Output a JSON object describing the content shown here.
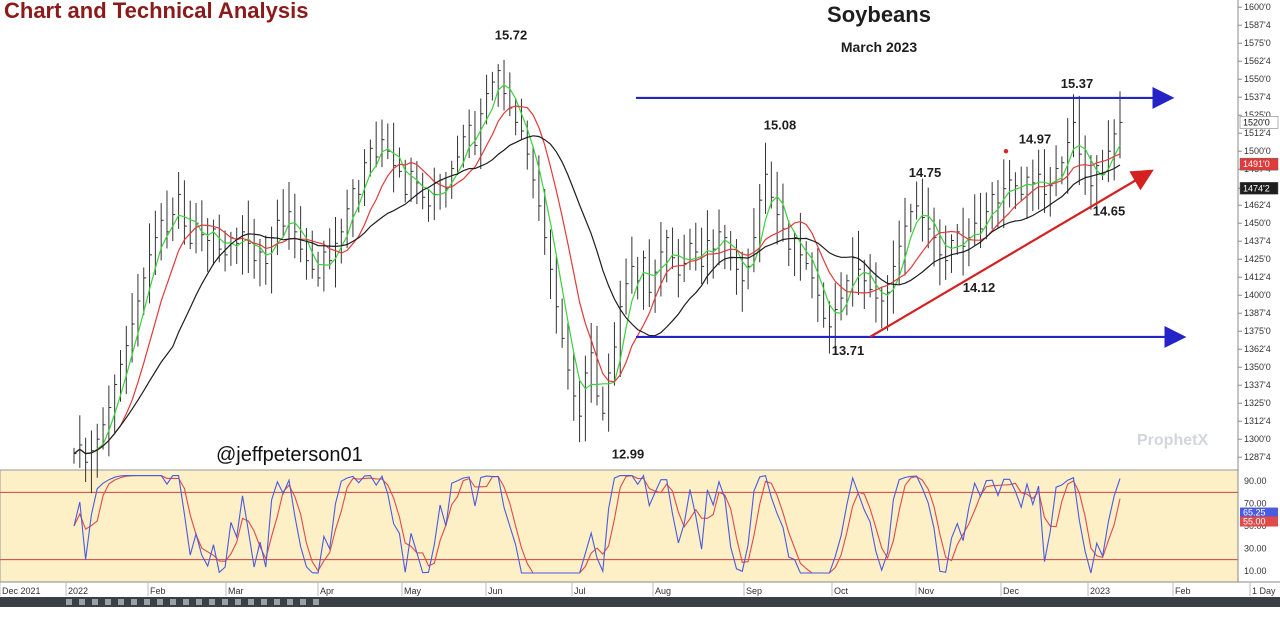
{
  "header": {
    "left_title": "Chart and Technical Analysis",
    "title": "Soybeans",
    "subtitle": "March 2023"
  },
  "watermark": "ProphetX",
  "handle": "@jeffpeterson01",
  "colors": {
    "up_channel": "#2323c8",
    "trend": "#d62020",
    "ma_fast": "#3bd23b",
    "ma_mid": "#e03a3a",
    "ma_slow": "#1e1e1e",
    "stoch_k": "#4a5be0",
    "stoch_d": "#e04a4a",
    "osc_bg": "#fdefc6"
  },
  "chart_data": {
    "type": "line",
    "title": "Soybeans",
    "subtitle": "March 2023",
    "price_axis": {
      "ticks": [
        "1600'0",
        "1587'4",
        "1575'0",
        "1562'4",
        "1550'0",
        "1537'4",
        "1525'0",
        "1512'4",
        "1500'0",
        "1487'4",
        "1474'2",
        "1462'4",
        "1450'0",
        "1437'4",
        "1425'0",
        "1412'4",
        "1400'0",
        "1387'4",
        "1375'0",
        "1362'4",
        "1350'0",
        "1337'4",
        "1325'0",
        "1312'4",
        "1300'0",
        "1287'4"
      ],
      "ylim": [
        1280,
        1605
      ],
      "last_price_label": "1520'0",
      "ma_labels": [
        "1491'0",
        "1474'2"
      ]
    },
    "x_labels": [
      "Dec 2021",
      "2022",
      "Feb",
      "Mar",
      "Apr",
      "May",
      "Jun",
      "Jul",
      "Aug",
      "Sep",
      "Oct",
      "Nov",
      "Dec",
      "2023",
      "Feb",
      "1 Day"
    ],
    "annotations": [
      {
        "text": "15.72",
        "price": 1572
      },
      {
        "text": "12.99",
        "price": 1299
      },
      {
        "text": "15.08",
        "price": 1508
      },
      {
        "text": "14.75",
        "price": 1475
      },
      {
        "text": "13.71",
        "price": 1371
      },
      {
        "text": "14.12",
        "price": 1412
      },
      {
        "text": "14.97",
        "price": 1497
      },
      {
        "text": "15.37",
        "price": 1537
      },
      {
        "text": "14.65",
        "price": 1465
      }
    ],
    "lines": [
      {
        "name": "resistance",
        "price": 1537
      },
      {
        "name": "support",
        "price": 1371
      },
      {
        "name": "trendline",
        "from": 1371,
        "to": 1487
      }
    ],
    "closes": [
      1290,
      1296,
      1284,
      1292,
      1300,
      1310,
      1322,
      1338,
      1352,
      1365,
      1380,
      1396,
      1412,
      1428,
      1440,
      1452,
      1444,
      1456,
      1470,
      1448,
      1436,
      1450,
      1442,
      1438,
      1446,
      1432,
      1428,
      1440,
      1436,
      1444,
      1436,
      1424,
      1430,
      1422,
      1440,
      1452,
      1448,
      1458,
      1444,
      1432,
      1424,
      1418,
      1412,
      1430,
      1424,
      1436,
      1444,
      1460,
      1474,
      1470,
      1492,
      1502,
      1496,
      1508,
      1500,
      1490,
      1486,
      1470,
      1486,
      1478,
      1468,
      1462,
      1470,
      1480,
      1474,
      1488,
      1496,
      1510,
      1518,
      1504,
      1526,
      1540,
      1548,
      1556,
      1540,
      1530,
      1520,
      1514,
      1498,
      1480,
      1462,
      1440,
      1418,
      1392,
      1370,
      1348,
      1330,
      1316,
      1346,
      1360,
      1330,
      1318,
      1346,
      1364,
      1392,
      1408,
      1420,
      1410,
      1426,
      1402,
      1416,
      1430,
      1440,
      1426,
      1414,
      1422,
      1436,
      1430,
      1420,
      1438,
      1432,
      1444,
      1440,
      1426,
      1418,
      1410,
      1420,
      1440,
      1466,
      1484,
      1468,
      1456,
      1446,
      1432,
      1440,
      1428,
      1422,
      1412,
      1400,
      1384,
      1378,
      1390,
      1398,
      1410,
      1426,
      1418,
      1410,
      1404,
      1398,
      1396,
      1402,
      1420,
      1434,
      1448,
      1458,
      1462,
      1454,
      1446,
      1440,
      1428,
      1424,
      1438,
      1444,
      1434,
      1440,
      1450,
      1446,
      1458,
      1470,
      1464,
      1474,
      1480,
      1476,
      1470,
      1482,
      1478,
      1484,
      1470,
      1476,
      1488,
      1492,
      1506,
      1520,
      1498,
      1482,
      1476,
      1490,
      1484,
      1500,
      1512,
      1520
    ],
    "oscillator": {
      "ticks": [
        "90.00",
        "70.00",
        "50.00",
        "30.00",
        "10.00"
      ],
      "ylim": [
        0,
        100
      ],
      "overbought": 80,
      "oversold": 20,
      "k_label": "65.25",
      "d_label": "55.00"
    }
  },
  "toolbar_icons": [
    "tool-icon-1",
    "tool-icon-2",
    "tool-icon-3",
    "tool-icon-4",
    "tool-icon-5",
    "tool-icon-6",
    "tool-icon-7",
    "tool-icon-8",
    "tool-icon-9",
    "tool-icon-10",
    "tool-icon-11",
    "tool-icon-12",
    "tool-icon-13",
    "tool-icon-14",
    "tool-icon-15",
    "tool-icon-16",
    "tool-icon-17",
    "tool-icon-18",
    "tool-icon-19",
    "tool-icon-20"
  ]
}
